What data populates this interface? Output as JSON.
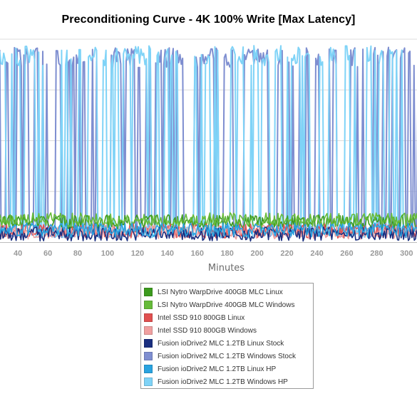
{
  "chart_data": {
    "type": "line",
    "title": "Preconditioning Curve - 4K 100% Write [Max Latency]",
    "xlabel": "Minutes",
    "ylabel": "",
    "x_ticks": [
      "40",
      "60",
      "80",
      "100",
      "120",
      "140",
      "160",
      "180",
      "200",
      "220",
      "240",
      "260",
      "280",
      "300"
    ],
    "xlim": [
      28,
      307
    ],
    "ylim": [
      0,
      1
    ],
    "grid": true,
    "legend_position": "bottom-center",
    "series": [
      {
        "name": "LSI Nytro WarpDrive 400GB MLC Linux",
        "color": "#3c9a1e",
        "style": "baseline",
        "level": 0.1
      },
      {
        "name": "LSI Nytro WarpDrive 400GB MLC Windows",
        "color": "#66bb3a",
        "style": "baseline",
        "level": 0.11
      },
      {
        "name": "Intel SSD 910 800GB Linux",
        "color": "#e05050",
        "style": "baseline",
        "level": 0.055
      },
      {
        "name": "Intel SSD 910 800GB Windows",
        "color": "#f0a0a0",
        "style": "baseline",
        "level": 0.05
      },
      {
        "name": "Fusion ioDrive2 MLC 1.2TB Linux Stock",
        "color": "#1a2f80",
        "style": "baseline",
        "level": 0.04
      },
      {
        "name": "Fusion ioDrive2 MLC 1.2TB Windows Stock",
        "color": "#7e8ed0",
        "style": "spikes",
        "level": 0.96
      },
      {
        "name": "Fusion ioDrive2 MLC 1.2TB Linux HP",
        "color": "#29a3e0",
        "style": "baseline",
        "level": 0.06
      },
      {
        "name": "Fusion ioDrive2 MLC 1.2TB Windows HP",
        "color": "#7fd3f7",
        "style": "spikes",
        "level": 0.97
      }
    ]
  }
}
